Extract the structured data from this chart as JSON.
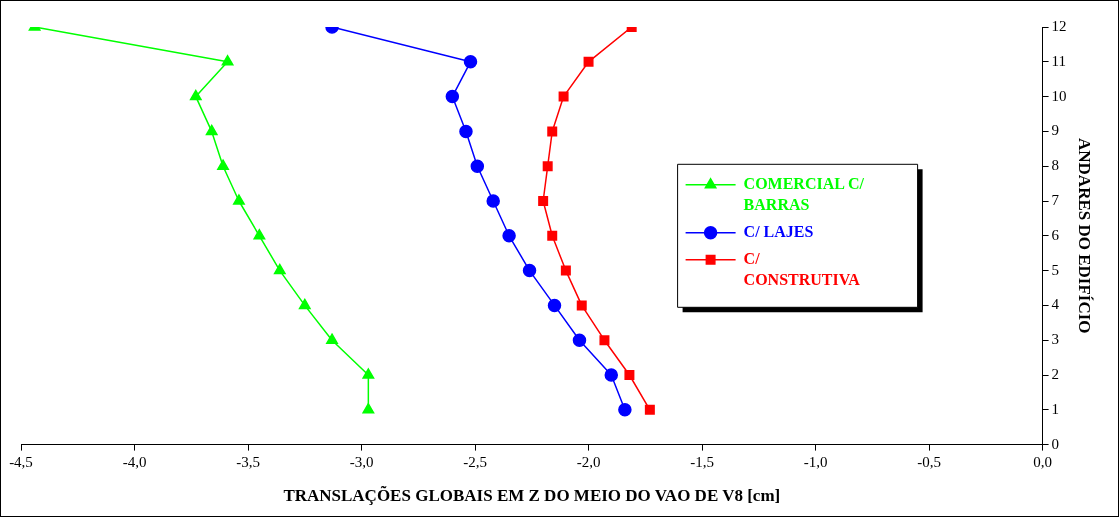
{
  "chart_data": {
    "type": "line",
    "xlabel": "TRANSLAÇÕES GLOBAIS EM Z DO MEIO DO VAO DE V8 [cm]",
    "ylabel": "ANDARES DO EDIFÍCIO",
    "xlim": [
      -4.5,
      0
    ],
    "xticks": [
      {
        "value": -4.5,
        "label": "-4,5"
      },
      {
        "value": -4,
        "label": "-4,0"
      },
      {
        "value": -3.5,
        "label": "-3,5"
      },
      {
        "value": -3,
        "label": "-3,0"
      },
      {
        "value": -2.5,
        "label": "-2,5"
      },
      {
        "value": -2,
        "label": "-2,0"
      },
      {
        "value": -1.5,
        "label": "-1,5"
      },
      {
        "value": -1,
        "label": "-1,0"
      },
      {
        "value": -0.5,
        "label": "-0,5"
      },
      {
        "value": 0,
        "label": "0,0"
      }
    ],
    "ylim": [
      0,
      12
    ],
    "yticks": [
      0,
      1,
      2,
      3,
      4,
      5,
      6,
      7,
      8,
      9,
      10,
      11,
      12
    ],
    "grid": false,
    "legend": "right",
    "line_style": "solid",
    "series": [
      {
        "name": "COMERCIAL C/ BARRAS",
        "color": "#00ff00",
        "marker": "triangle",
        "x": [
          -4.44,
          -3.59,
          -3.73,
          -3.66,
          -3.61,
          -3.54,
          -3.45,
          -3.36,
          -3.25,
          -3.13,
          -2.97,
          -2.97
        ],
        "values": [
          12,
          11,
          10,
          9,
          8,
          7,
          6,
          5,
          4,
          3,
          2,
          1
        ]
      },
      {
        "name": "C/ LAJES",
        "color": "#0000ff",
        "marker": "circle",
        "x": [
          -3.13,
          -2.52,
          -2.6,
          -2.54,
          -2.49,
          -2.42,
          -2.35,
          -2.26,
          -2.15,
          -2.04,
          -1.9,
          -1.84
        ],
        "values": [
          12,
          11,
          10,
          9,
          8,
          7,
          6,
          5,
          4,
          3,
          2,
          1
        ]
      },
      {
        "name": "C/ CONSTRUTIVA",
        "color": "#ff0000",
        "marker": "square",
        "x": [
          -1.81,
          -2.0,
          -2.11,
          -2.16,
          -2.18,
          -2.2,
          -2.16,
          -2.1,
          -2.03,
          -1.93,
          -1.82,
          -1.73
        ],
        "values": [
          12,
          11,
          10,
          9,
          8,
          7,
          6,
          5,
          4,
          3,
          2,
          1
        ]
      }
    ]
  }
}
